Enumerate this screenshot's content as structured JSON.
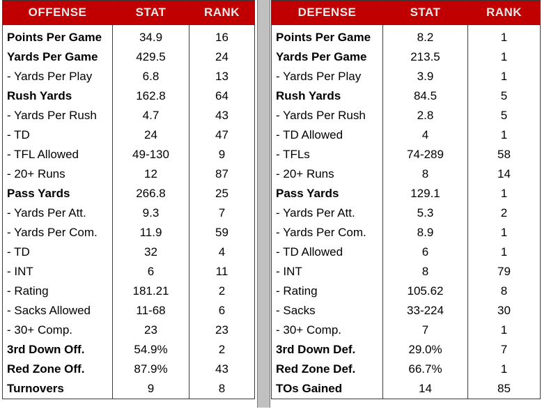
{
  "offense": {
    "headers": [
      "OFFENSE",
      "STAT",
      "RANK"
    ],
    "rows": [
      {
        "label": "Points Per Game",
        "stat": "34.9",
        "rank": "16",
        "bold": true
      },
      {
        "label": "Yards Per Game",
        "stat": "429.5",
        "rank": "24",
        "bold": true
      },
      {
        "label": "- Yards Per Play",
        "stat": "6.8",
        "rank": "13",
        "bold": false
      },
      {
        "label": "Rush Yards",
        "stat": "162.8",
        "rank": "64",
        "bold": true
      },
      {
        "label": "- Yards Per Rush",
        "stat": "4.7",
        "rank": "43",
        "bold": false
      },
      {
        "label": "- TD",
        "stat": "24",
        "rank": "47",
        "bold": false
      },
      {
        "label": "- TFL Allowed",
        "stat": "49-130",
        "rank": "9",
        "bold": false
      },
      {
        "label": "- 20+ Runs",
        "stat": "12",
        "rank": "87",
        "bold": false
      },
      {
        "label": "Pass Yards",
        "stat": "266.8",
        "rank": "25",
        "bold": true
      },
      {
        "label": "- Yards Per Att.",
        "stat": "9.3",
        "rank": "7",
        "bold": false
      },
      {
        "label": "- Yards Per Com.",
        "stat": "11.9",
        "rank": "59",
        "bold": false
      },
      {
        "label": "- TD",
        "stat": "32",
        "rank": "4",
        "bold": false
      },
      {
        "label": "- INT",
        "stat": "6",
        "rank": "11",
        "bold": false
      },
      {
        "label": "- Rating",
        "stat": "181.21",
        "rank": "2",
        "bold": false
      },
      {
        "label": "- Sacks Allowed",
        "stat": "11-68",
        "rank": "6",
        "bold": false
      },
      {
        "label": "- 30+ Comp.",
        "stat": "23",
        "rank": "23",
        "bold": false
      },
      {
        "label": "3rd Down Off.",
        "stat": "54.9%",
        "rank": "2",
        "bold": true
      },
      {
        "label": "Red Zone Off.",
        "stat": "87.9%",
        "rank": "43",
        "bold": true
      },
      {
        "label": "Turnovers",
        "stat": "9",
        "rank": "8",
        "bold": true
      }
    ]
  },
  "defense": {
    "headers": [
      "DEFENSE",
      "STAT",
      "RANK"
    ],
    "rows": [
      {
        "label": "Points Per Game",
        "stat": "8.2",
        "rank": "1",
        "bold": true
      },
      {
        "label": "Yards Per Game",
        "stat": "213.5",
        "rank": "1",
        "bold": true
      },
      {
        "label": "- Yards Per Play",
        "stat": "3.9",
        "rank": "1",
        "bold": false
      },
      {
        "label": "Rush Yards",
        "stat": "84.5",
        "rank": "5",
        "bold": true
      },
      {
        "label": "- Yards Per Rush",
        "stat": "2.8",
        "rank": "5",
        "bold": false
      },
      {
        "label": "- TD Allowed",
        "stat": "4",
        "rank": "1",
        "bold": false
      },
      {
        "label": "- TFLs",
        "stat": "74-289",
        "rank": "58",
        "bold": false
      },
      {
        "label": "- 20+ Runs",
        "stat": "8",
        "rank": "14",
        "bold": false
      },
      {
        "label": "Pass Yards",
        "stat": "129.1",
        "rank": "1",
        "bold": true
      },
      {
        "label": "- Yards Per Att.",
        "stat": "5.3",
        "rank": "2",
        "bold": false
      },
      {
        "label": "- Yards Per Com.",
        "stat": "8.9",
        "rank": "1",
        "bold": false
      },
      {
        "label": "- TD Allowed",
        "stat": "6",
        "rank": "1",
        "bold": false
      },
      {
        "label": "- INT",
        "stat": "8",
        "rank": "79",
        "bold": false
      },
      {
        "label": "- Rating",
        "stat": "105.62",
        "rank": "8",
        "bold": false
      },
      {
        "label": "- Sacks",
        "stat": "33-224",
        "rank": "30",
        "bold": false
      },
      {
        "label": "- 30+ Comp.",
        "stat": "7",
        "rank": "1",
        "bold": false
      },
      {
        "label": "3rd Down Def.",
        "stat": "29.0%",
        "rank": "7",
        "bold": true
      },
      {
        "label": "Red Zone Def.",
        "stat": "66.7%",
        "rank": "1",
        "bold": true
      },
      {
        "label": "TOs Gained",
        "stat": "14",
        "rank": "85",
        "bold": true
      }
    ]
  }
}
